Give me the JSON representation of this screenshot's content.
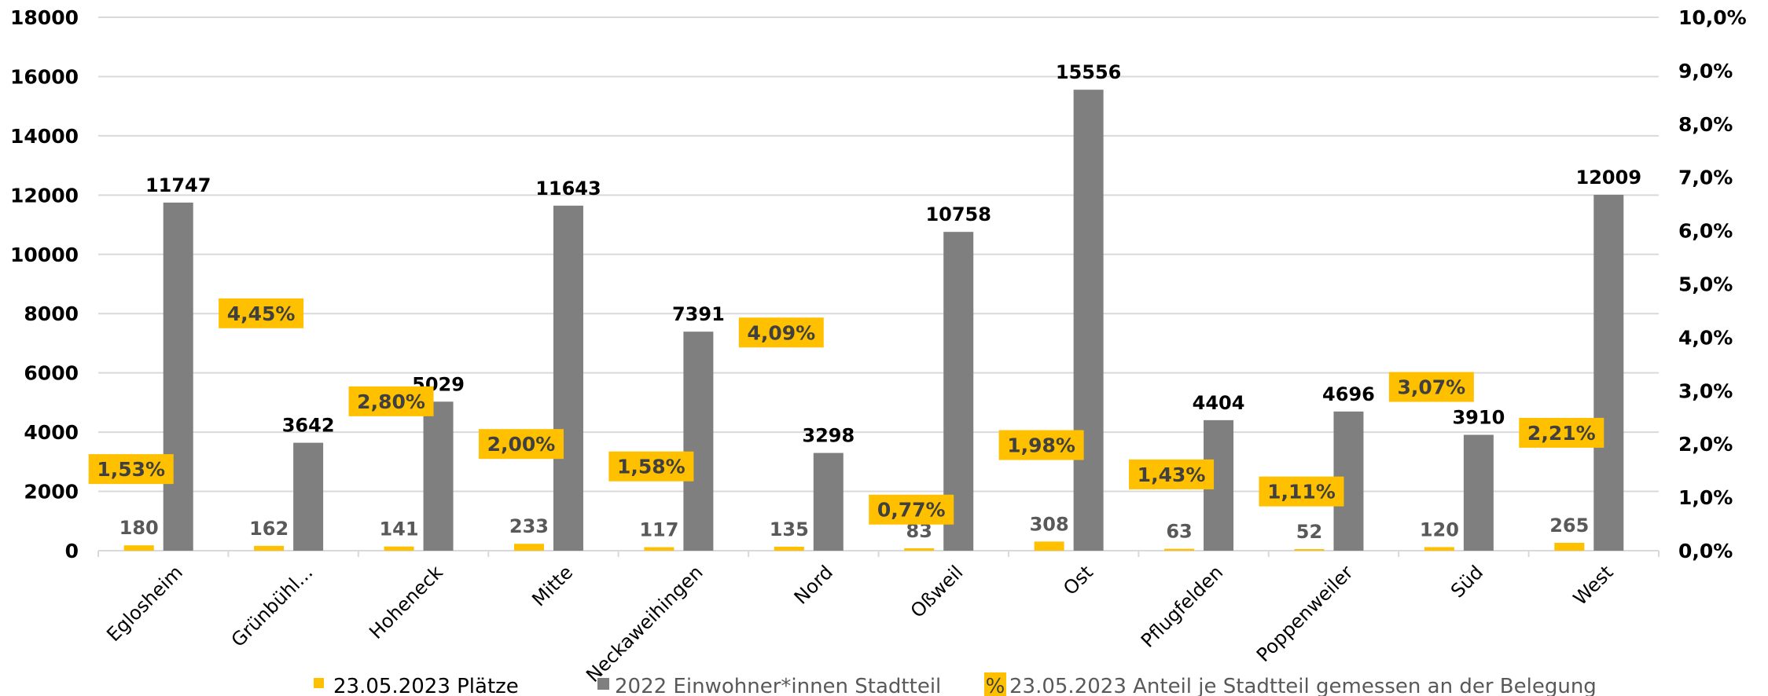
{
  "chart_data": {
    "type": "bar",
    "categories": [
      "Eglosheim",
      "Grünbühl...",
      "Hoheneck",
      "Mitte",
      "Neckaweihingen",
      "Nord",
      "Oßweil",
      "Ost",
      "Pflugfelden",
      "Poppenweiler",
      "Süd",
      "West"
    ],
    "series": [
      {
        "name": "23.05.2023 Plätze",
        "axis": "left",
        "values": [
          180,
          162,
          141,
          233,
          117,
          135,
          83,
          308,
          63,
          52,
          120,
          265
        ],
        "color": "#FFC000"
      },
      {
        "name": "2022 Einwohner*innen Stadtteil",
        "axis": "left",
        "values": [
          11747,
          3642,
          5029,
          11643,
          7391,
          3298,
          10758,
          15556,
          4404,
          4696,
          3910,
          12009
        ],
        "color": "#7F7F7F"
      },
      {
        "name": "23.05.2023 Anteil je Stadtteil gemessen an der Belegung",
        "axis": "right",
        "values": [
          1.53,
          4.45,
          2.8,
          2.0,
          1.58,
          4.09,
          0.77,
          1.98,
          1.43,
          1.11,
          3.07,
          2.21
        ],
        "labels": [
          "1,53%",
          "4,45%",
          "2,80%",
          "2,00%",
          "1,58%",
          "4,09%",
          "0,77%",
          "1,98%",
          "1,43%",
          "1,11%",
          "3,07%",
          "2,21%"
        ],
        "color": "#FFC000"
      }
    ],
    "ylim": [
      0,
      18000
    ],
    "yticks": [
      "0",
      "2000",
      "4000",
      "6000",
      "8000",
      "10000",
      "12000",
      "14000",
      "16000",
      "18000"
    ],
    "y2lim": [
      0,
      10
    ],
    "y2ticks": [
      "0,0%",
      "1,0%",
      "2,0%",
      "3,0%",
      "4,0%",
      "5,0%",
      "6,0%",
      "7,0%",
      "8,0%",
      "9,0%",
      "10,0%"
    ],
    "grid": true,
    "legend_position": "bottom"
  },
  "legend": {
    "items": [
      {
        "label": "23.05.2023 Plätze",
        "marker": "square",
        "color": "#FFC000"
      },
      {
        "label": "2022 Einwohner*innen Stadtteil",
        "marker": "square",
        "color": "#7F7F7F"
      },
      {
        "label": "23.05.2023 Anteil je Stadtteil gemessen an der Belegung",
        "marker": "%",
        "color": "#FFC000"
      }
    ]
  }
}
